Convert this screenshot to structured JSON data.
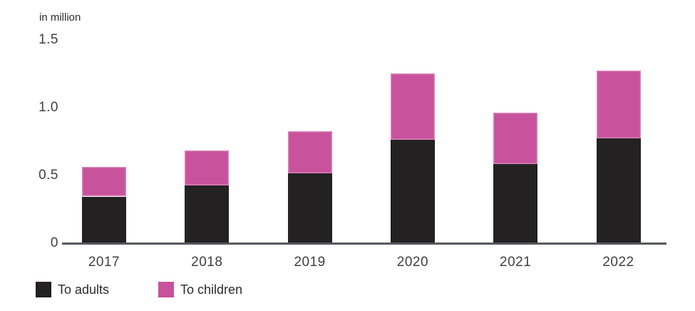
{
  "chart_data": {
    "type": "bar",
    "stacked": true,
    "title": "in million",
    "categories": [
      "2017",
      "2018",
      "2019",
      "2020",
      "2021",
      "2022"
    ],
    "series": [
      {
        "name": "To adults",
        "color": "#242122",
        "values": [
          0.35,
          0.43,
          0.52,
          0.77,
          0.59,
          0.78
        ]
      },
      {
        "name": "To children",
        "color": "#c8529c",
        "values": [
          0.22,
          0.26,
          0.31,
          0.49,
          0.38,
          0.5
        ]
      }
    ],
    "totals": [
      0.57,
      0.69,
      0.83,
      1.26,
      0.97,
      1.28
    ],
    "ylim": [
      0,
      1.5
    ],
    "yticks": [
      {
        "value": 0,
        "label": "0"
      },
      {
        "value": 0.5,
        "label": "0.5"
      },
      {
        "value": 1.0,
        "label": "1.0"
      },
      {
        "value": 1.5,
        "label": "1.5"
      }
    ],
    "grid": false,
    "legend_position": "bottom-left",
    "axis_color": "#58595b",
    "text_color": "#414042",
    "background_color": "#ffffff"
  }
}
